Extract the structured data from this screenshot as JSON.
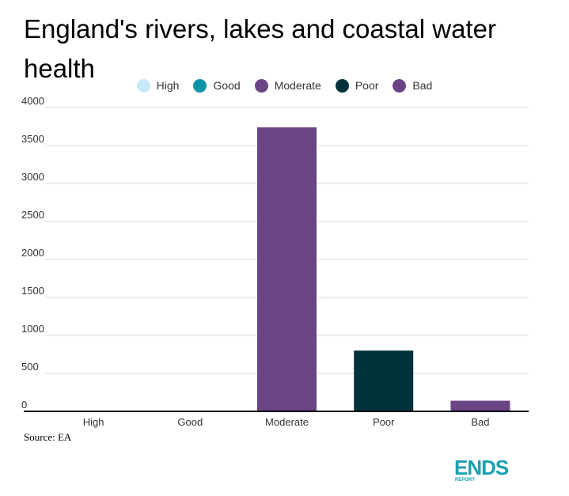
{
  "title": "England's rivers, lakes and coastal water health",
  "source": "Source: EA",
  "logo": {
    "main": "ENDS",
    "sub": "REPORT"
  },
  "colors": {
    "high": "#c6e9f5",
    "good": "#0b93a8",
    "moderate": "#6b4485",
    "poor": "#02333c",
    "bad": "#6b4485",
    "grid": "#d9d9d9",
    "axis": "#000000",
    "logo": "#1aa0b0"
  },
  "chart_data": {
    "type": "bar",
    "title": "England's rivers, lakes and coastal water health",
    "xlabel": "",
    "ylabel": "",
    "categories": [
      "High",
      "Good",
      "Moderate",
      "Poor",
      "Bad"
    ],
    "values": [
      0,
      0,
      3740,
      800,
      140
    ],
    "series_colors": [
      "#c6e9f5",
      "#0b93a8",
      "#6b4485",
      "#02333c",
      "#6b4485"
    ],
    "ylim": [
      0,
      4000
    ],
    "yticks": [
      "0",
      "500",
      "1000",
      "1500",
      "2000",
      "2500",
      "3000",
      "3500",
      "4000"
    ],
    "grid": true,
    "legend": {
      "placement": "top",
      "entries": [
        {
          "label": "High",
          "color": "#c6e9f5"
        },
        {
          "label": "Good",
          "color": "#0b93a8"
        },
        {
          "label": "Moderate",
          "color": "#6b4485"
        },
        {
          "label": "Poor",
          "color": "#02333c"
        },
        {
          "label": "Bad",
          "color": "#6b4485"
        }
      ]
    }
  }
}
